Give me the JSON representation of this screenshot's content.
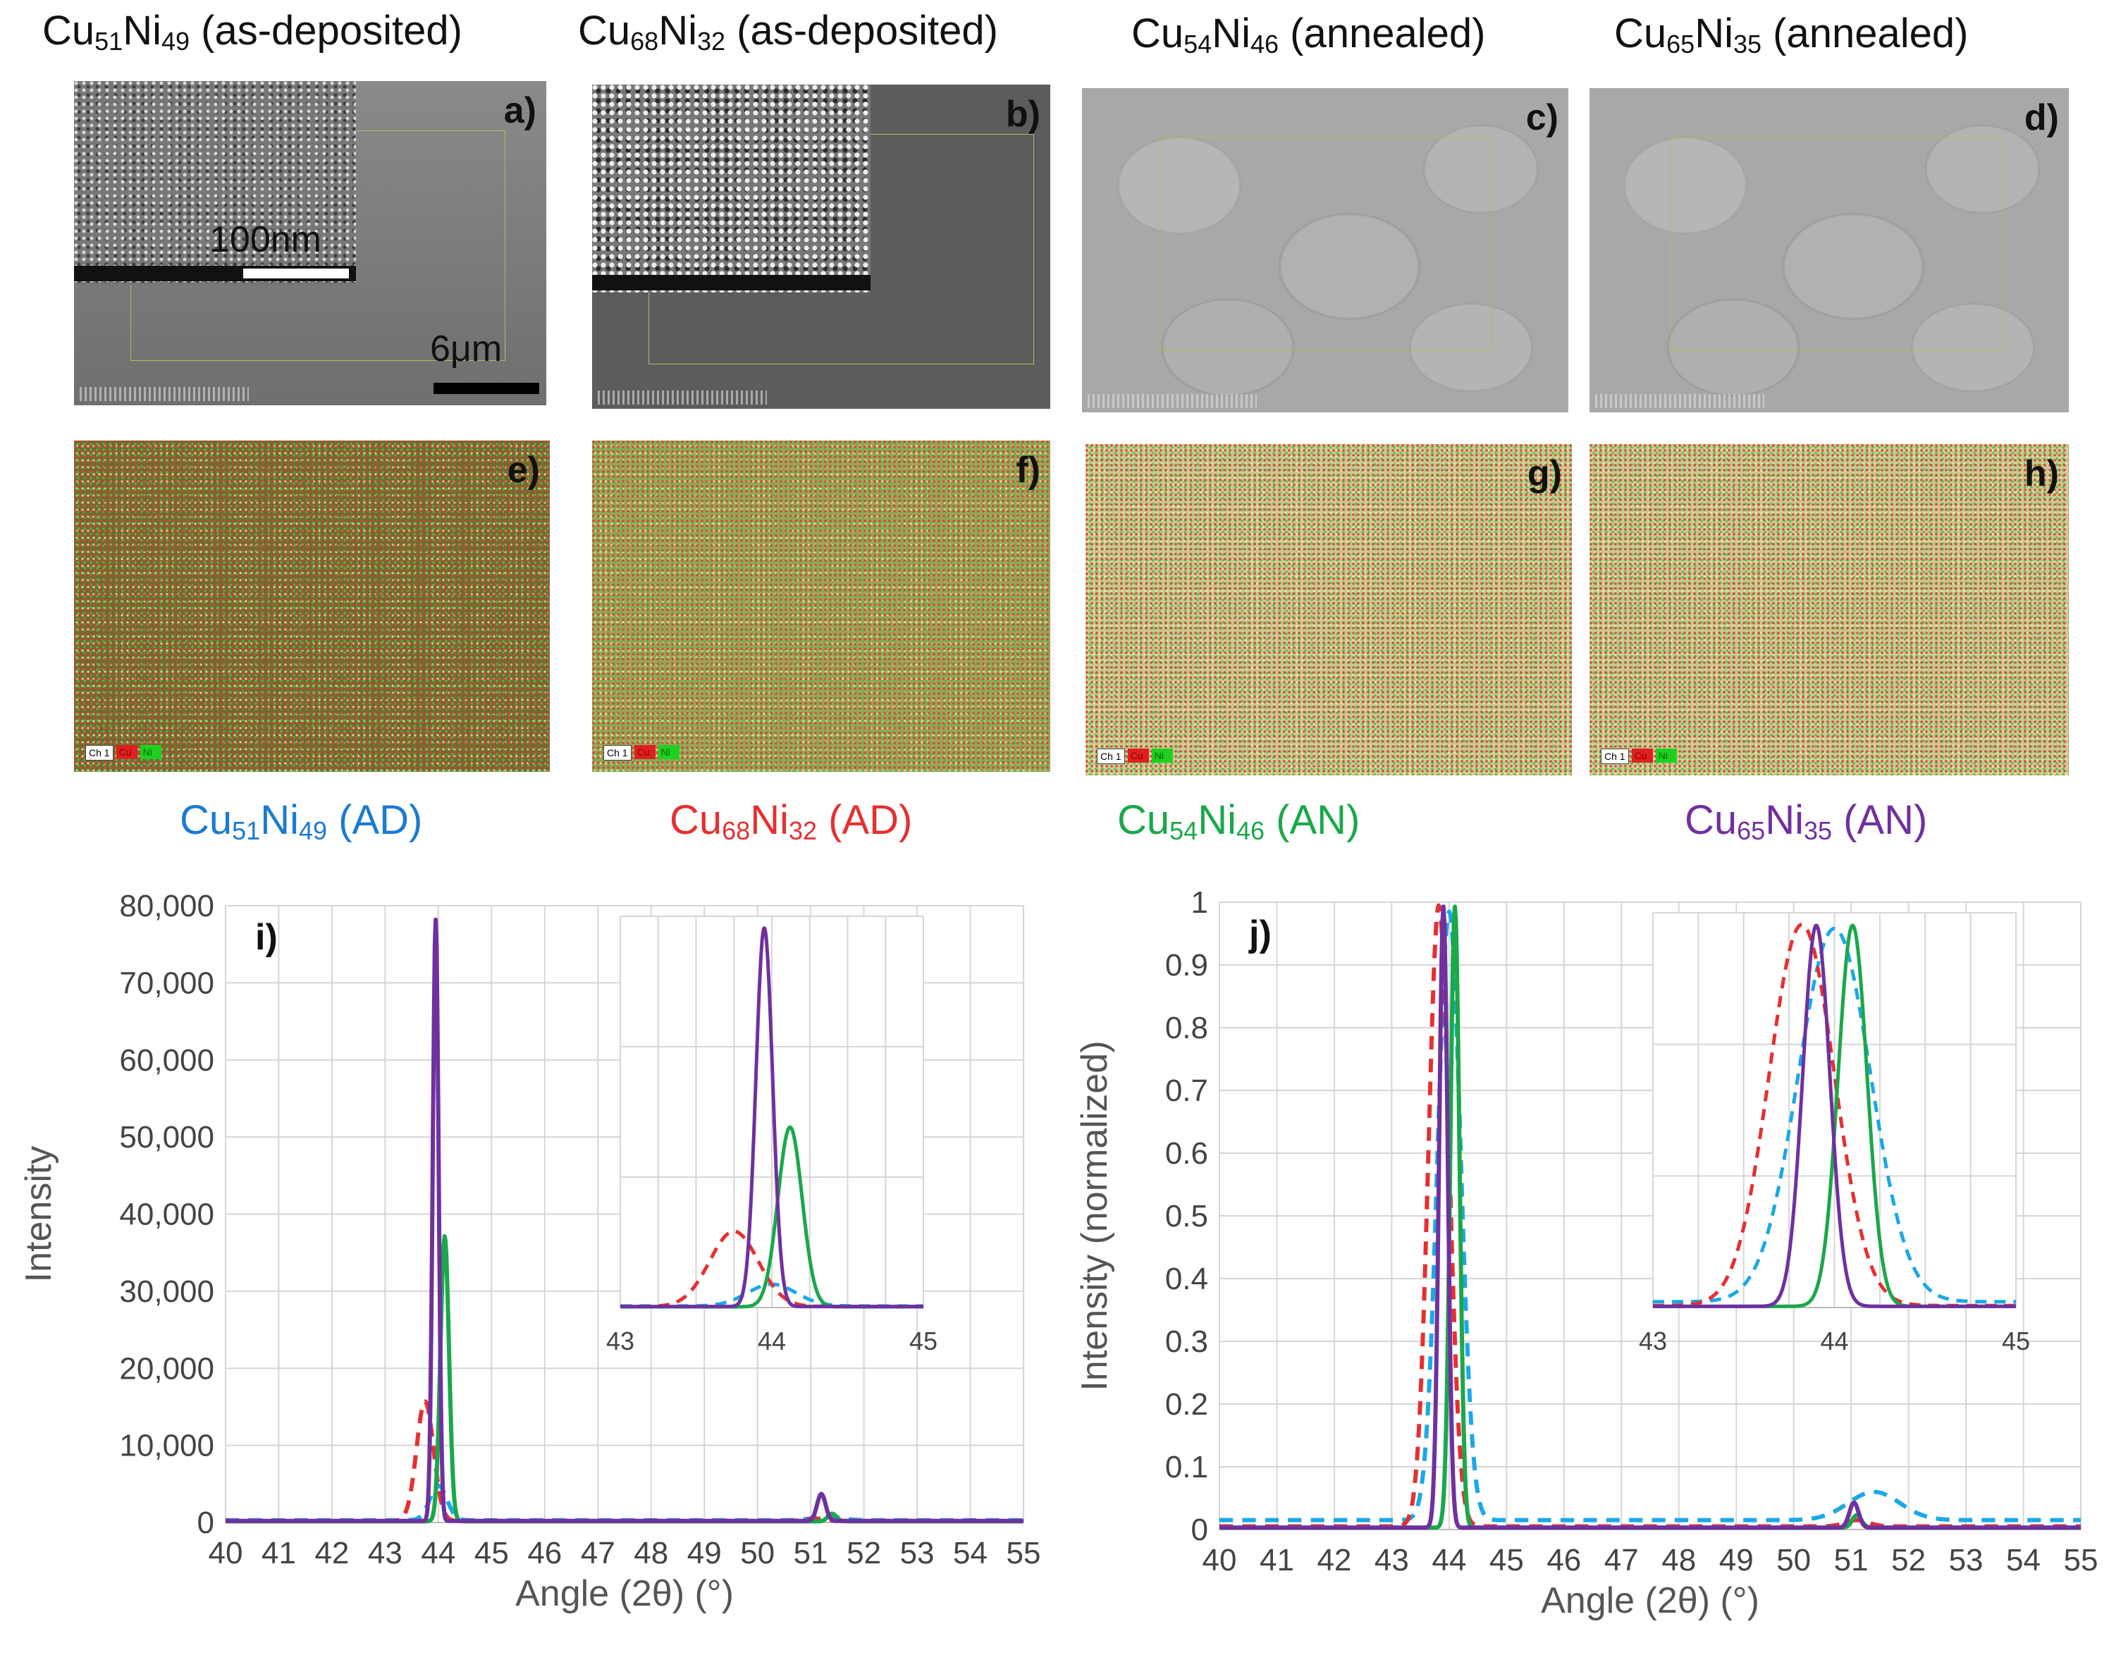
{
  "titles": {
    "a": {
      "cu_sub": "51",
      "ni_sub": "49",
      "suffix": "(as-deposited)"
    },
    "b": {
      "cu_sub": "68",
      "ni_sub": "32",
      "suffix": "(as-deposited)"
    },
    "c": {
      "cu_sub": "54",
      "ni_sub": "46",
      "suffix": "(annealed)"
    },
    "d": {
      "cu_sub": "65",
      "ni_sub": "35",
      "suffix": "(annealed)"
    }
  },
  "element_cu": "Cu",
  "element_ni": "Ni",
  "panel_letters": [
    "a)",
    "b)",
    "c)",
    "d)",
    "e)",
    "f)",
    "g)",
    "h)",
    "i)",
    "j)"
  ],
  "scale_labels": {
    "inset": "100nm",
    "main": "6μm"
  },
  "eds_legend": {
    "channel": "Ch 1",
    "cu": "Cu",
    "ni": "Ni"
  },
  "series_labels": [
    {
      "cu_sub": "51",
      "ni_sub": "49",
      "tag": "(AD)",
      "color": "#1b7bd0"
    },
    {
      "cu_sub": "68",
      "ni_sub": "32",
      "tag": "(AD)",
      "color": "#e53030"
    },
    {
      "cu_sub": "54",
      "ni_sub": "46",
      "tag": "(AN)",
      "color": "#1aa84a"
    },
    {
      "cu_sub": "65",
      "ni_sub": "35",
      "tag": "(AN)",
      "color": "#7030a0"
    }
  ],
  "chart_data": [
    {
      "type": "line",
      "panel": "i)",
      "xlabel": "Angle (2θ) (°)",
      "ylabel": "Intensity",
      "xlim": [
        40,
        55
      ],
      "ylim": [
        0,
        80000
      ],
      "xticks": [
        40,
        41,
        42,
        43,
        44,
        45,
        46,
        47,
        48,
        49,
        50,
        51,
        52,
        53,
        54,
        55
      ],
      "yticks": [
        0,
        10000,
        20000,
        30000,
        40000,
        50000,
        60000,
        70000,
        80000
      ],
      "ytick_labels": [
        "0",
        "10,000",
        "20,000",
        "30,000",
        "40,000",
        "50,000",
        "60,000",
        "70,000",
        "80,000"
      ],
      "series": [
        {
          "name": "Cu51Ni49 (AD)",
          "color": "#1ba8e6",
          "dash": true,
          "baseline": 300,
          "peaks": [
            {
              "x": 44.0,
              "y": 4500,
              "w": 0.16
            },
            {
              "x": 51.3,
              "y": 500,
              "w": 0.25
            }
          ]
        },
        {
          "name": "Cu68Ni32 (AD)",
          "color": "#e53030",
          "dash": true,
          "baseline": 200,
          "peaks": [
            {
              "x": 43.75,
              "y": 15500,
              "w": 0.16
            },
            {
              "x": 51.1,
              "y": 300,
              "w": 0.2
            }
          ]
        },
        {
          "name": "Cu54Ni46 (AN)",
          "color": "#1aa84a",
          "dash": false,
          "baseline": 150,
          "peaks": [
            {
              "x": 44.12,
              "y": 37000,
              "w": 0.08
            },
            {
              "x": 51.4,
              "y": 1000,
              "w": 0.08
            }
          ]
        },
        {
          "name": "Cu65Ni35 (AN)",
          "color": "#7030a0",
          "dash": false,
          "baseline": 200,
          "peaks": [
            {
              "x": 43.95,
              "y": 78000,
              "w": 0.055
            },
            {
              "x": 51.2,
              "y": 3500,
              "w": 0.08
            }
          ]
        }
      ],
      "inset": {
        "xlim": [
          43,
          45
        ],
        "xticks": [
          43,
          44,
          45
        ]
      }
    },
    {
      "type": "line",
      "panel": "j)",
      "xlabel": "Angle (2θ) (°)",
      "ylabel": "Intensity (normalized)",
      "xlim": [
        40,
        55
      ],
      "ylim": [
        0,
        1
      ],
      "xticks": [
        40,
        41,
        42,
        43,
        44,
        45,
        46,
        47,
        48,
        49,
        50,
        51,
        52,
        53,
        54,
        55
      ],
      "yticks": [
        0,
        0.1,
        0.2,
        0.3,
        0.4,
        0.5,
        0.6,
        0.7,
        0.8,
        0.9,
        1
      ],
      "ytick_labels": [
        "0",
        "0.1",
        "0.2",
        "0.3",
        "0.4",
        "0.5",
        "0.6",
        "0.7",
        "0.8",
        "0.9",
        "1"
      ],
      "series": [
        {
          "name": "Cu51Ni49 (AD)",
          "color": "#1ba8e6",
          "dash": true,
          "baseline": 0.015,
          "peaks": [
            {
              "x": 44.0,
              "y": 0.97,
              "w": 0.2
            },
            {
              "x": 51.4,
              "y": 0.045,
              "w": 0.45
            }
          ]
        },
        {
          "name": "Cu68Ni32 (AD)",
          "color": "#e53030",
          "dash": true,
          "baseline": 0.005,
          "peaks": [
            {
              "x": 43.82,
              "y": 0.99,
              "w": 0.18
            },
            {
              "x": 51.1,
              "y": 0.01,
              "w": 0.2
            }
          ]
        },
        {
          "name": "Cu54Ni46 (AN)",
          "color": "#1aa84a",
          "dash": false,
          "baseline": 0.003,
          "peaks": [
            {
              "x": 44.1,
              "y": 0.99,
              "w": 0.08
            },
            {
              "x": 51.1,
              "y": 0.02,
              "w": 0.08
            }
          ]
        },
        {
          "name": "Cu65Ni35 (AN)",
          "color": "#7030a0",
          "dash": false,
          "baseline": 0.003,
          "peaks": [
            {
              "x": 43.9,
              "y": 0.99,
              "w": 0.075
            },
            {
              "x": 51.05,
              "y": 0.04,
              "w": 0.08
            }
          ]
        }
      ],
      "inset": {
        "xlim": [
          43,
          45
        ],
        "xticks": [
          43,
          44,
          45
        ]
      }
    }
  ]
}
